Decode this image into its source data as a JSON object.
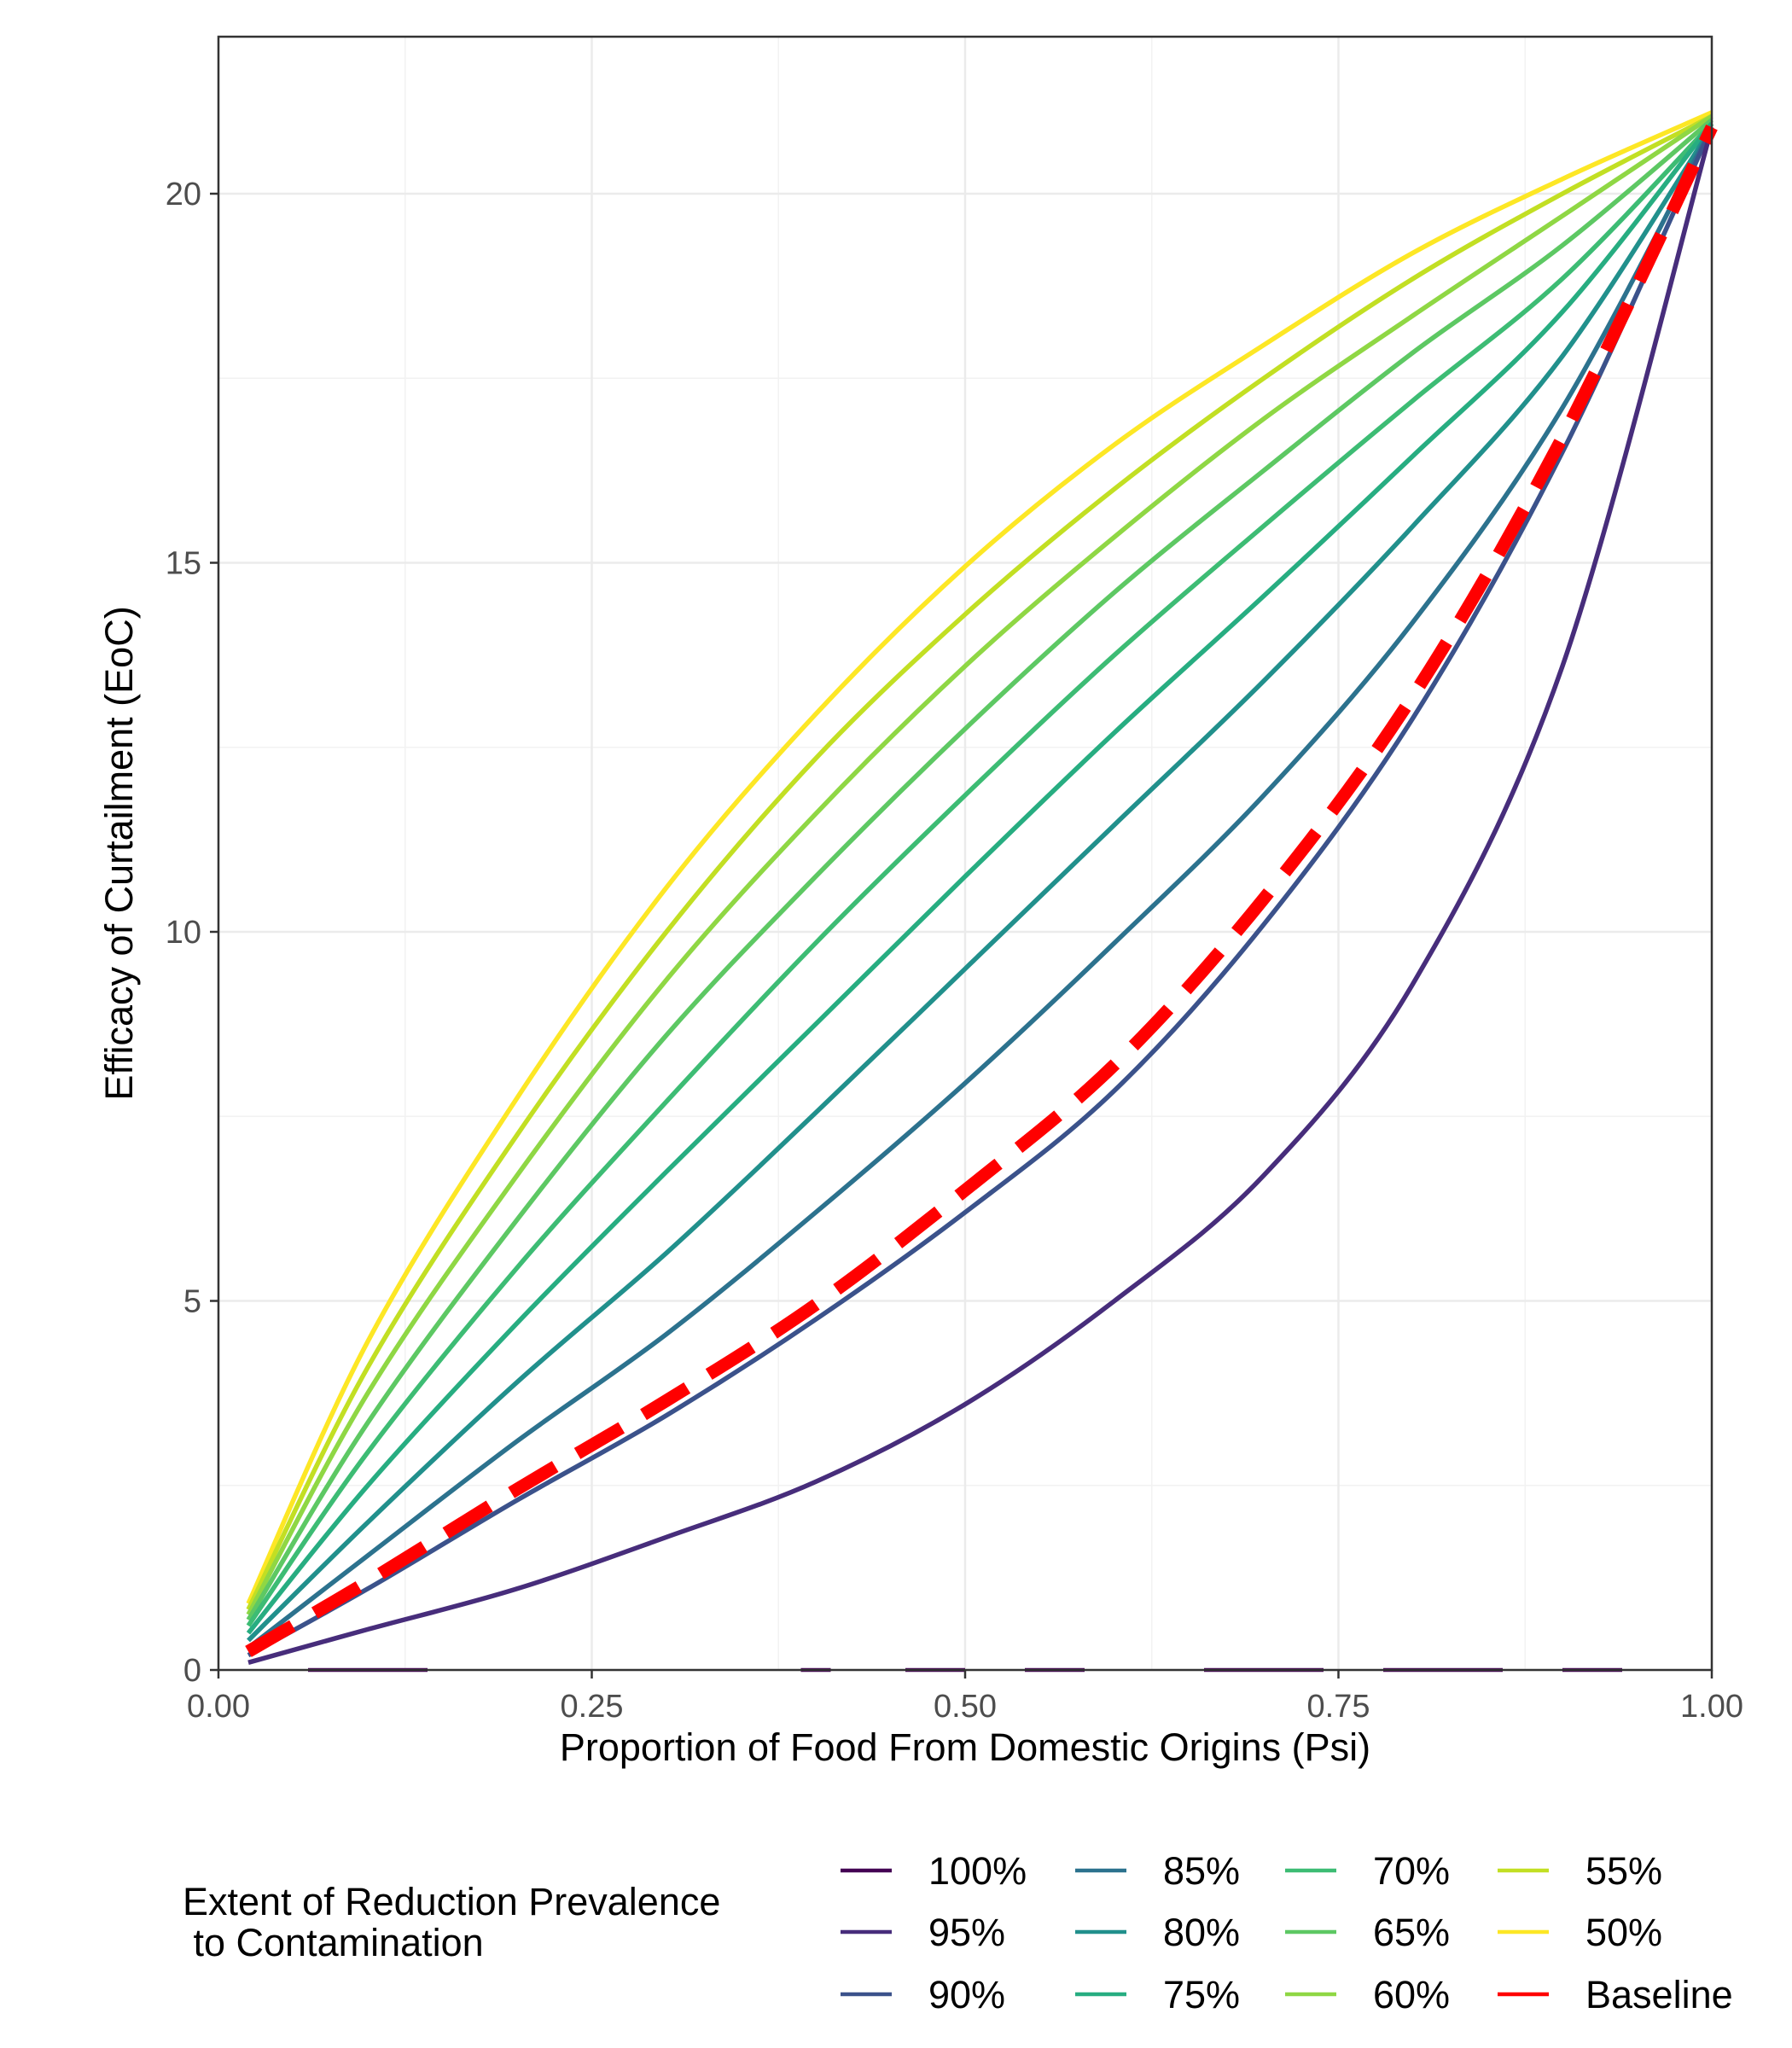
{
  "chart_data": {
    "type": "line",
    "title": "",
    "xlabel": "Proportion of Food From Domestic Origins (Psi)",
    "ylabel": "Efficacy of Curtailment (EoC)",
    "xlim": [
      0,
      1
    ],
    "ylim": [
      0,
      22
    ],
    "x_ticks": [
      "0.00",
      "0.25",
      "0.50",
      "0.75",
      "1.00"
    ],
    "y_ticks": [
      "0",
      "5",
      "10",
      "15",
      "20"
    ],
    "legend_title_line1": "Extent of Reduction Prevalence",
    "legend_title_line2": " to Contamination",
    "x": [
      0.02,
      0.1,
      0.2,
      0.3,
      0.4,
      0.5,
      0.6,
      0.7,
      0.8,
      0.9,
      1.0
    ],
    "series": [
      {
        "name": "100%",
        "color": "#440154",
        "values": [
          0,
          0,
          0,
          0,
          0,
          0,
          0,
          0,
          0,
          0,
          0
        ],
        "segments": [
          [
            0.06,
            0.14
          ],
          [
            0.39,
            0.41
          ],
          [
            0.46,
            0.5
          ],
          [
            0.54,
            0.58
          ],
          [
            0.66,
            0.74
          ],
          [
            0.78,
            0.86
          ],
          [
            0.9,
            0.94
          ]
        ]
      },
      {
        "name": "95%",
        "color": "#472D7B",
        "values": [
          0.1,
          0.55,
          1.1,
          1.8,
          2.55,
          3.6,
          5.0,
          6.7,
          9.3,
          13.6,
          20.9
        ]
      },
      {
        "name": "90%",
        "color": "#3B528B",
        "values": [
          0.2,
          1.1,
          2.3,
          3.45,
          4.75,
          6.2,
          7.85,
          10.1,
          12.9,
          16.5,
          20.9
        ]
      },
      {
        "name": "85%",
        "color": "#2C728E",
        "values": [
          0.3,
          1.55,
          3.1,
          4.55,
          6.2,
          7.95,
          9.85,
          11.85,
          14.2,
          17.1,
          20.9
        ]
      },
      {
        "name": "80%",
        "color": "#21908C",
        "values": [
          0.4,
          2.0,
          3.9,
          5.65,
          7.55,
          9.5,
          11.45,
          13.4,
          15.5,
          17.8,
          20.9
        ]
      },
      {
        "name": "75%",
        "color": "#27AD81",
        "values": [
          0.5,
          2.5,
          4.7,
          6.75,
          8.75,
          10.75,
          12.7,
          14.55,
          16.45,
          18.4,
          20.95
        ]
      },
      {
        "name": "70%",
        "color": "#3DBC74",
        "values": [
          0.6,
          2.95,
          5.45,
          7.7,
          9.85,
          11.85,
          13.75,
          15.5,
          17.2,
          18.85,
          20.95
        ]
      },
      {
        "name": "65%",
        "color": "#5DC863",
        "values": [
          0.68,
          3.35,
          6.1,
          8.6,
          10.75,
          12.75,
          14.6,
          16.25,
          17.85,
          19.3,
          21.0
        ]
      },
      {
        "name": "60%",
        "color": "#8FD744",
        "values": [
          0.75,
          3.75,
          6.7,
          9.35,
          11.6,
          13.6,
          15.35,
          16.95,
          18.35,
          19.7,
          21.05
        ]
      },
      {
        "name": "55%",
        "color": "#C2DF23",
        "values": [
          0.82,
          4.1,
          7.25,
          10.0,
          12.35,
          14.3,
          16.0,
          17.5,
          18.85,
          20.0,
          21.05
        ]
      },
      {
        "name": "50%",
        "color": "#FDE725",
        "values": [
          0.9,
          4.45,
          7.75,
          10.6,
          12.95,
          14.95,
          16.6,
          17.95,
          19.2,
          20.2,
          21.1
        ]
      },
      {
        "name": "Baseline",
        "color": "#FF0000",
        "dashed": true,
        "values": [
          0.25,
          1.2,
          2.45,
          3.65,
          4.95,
          6.5,
          8.2,
          10.45,
          13.2,
          16.7,
          20.9
        ]
      }
    ]
  }
}
